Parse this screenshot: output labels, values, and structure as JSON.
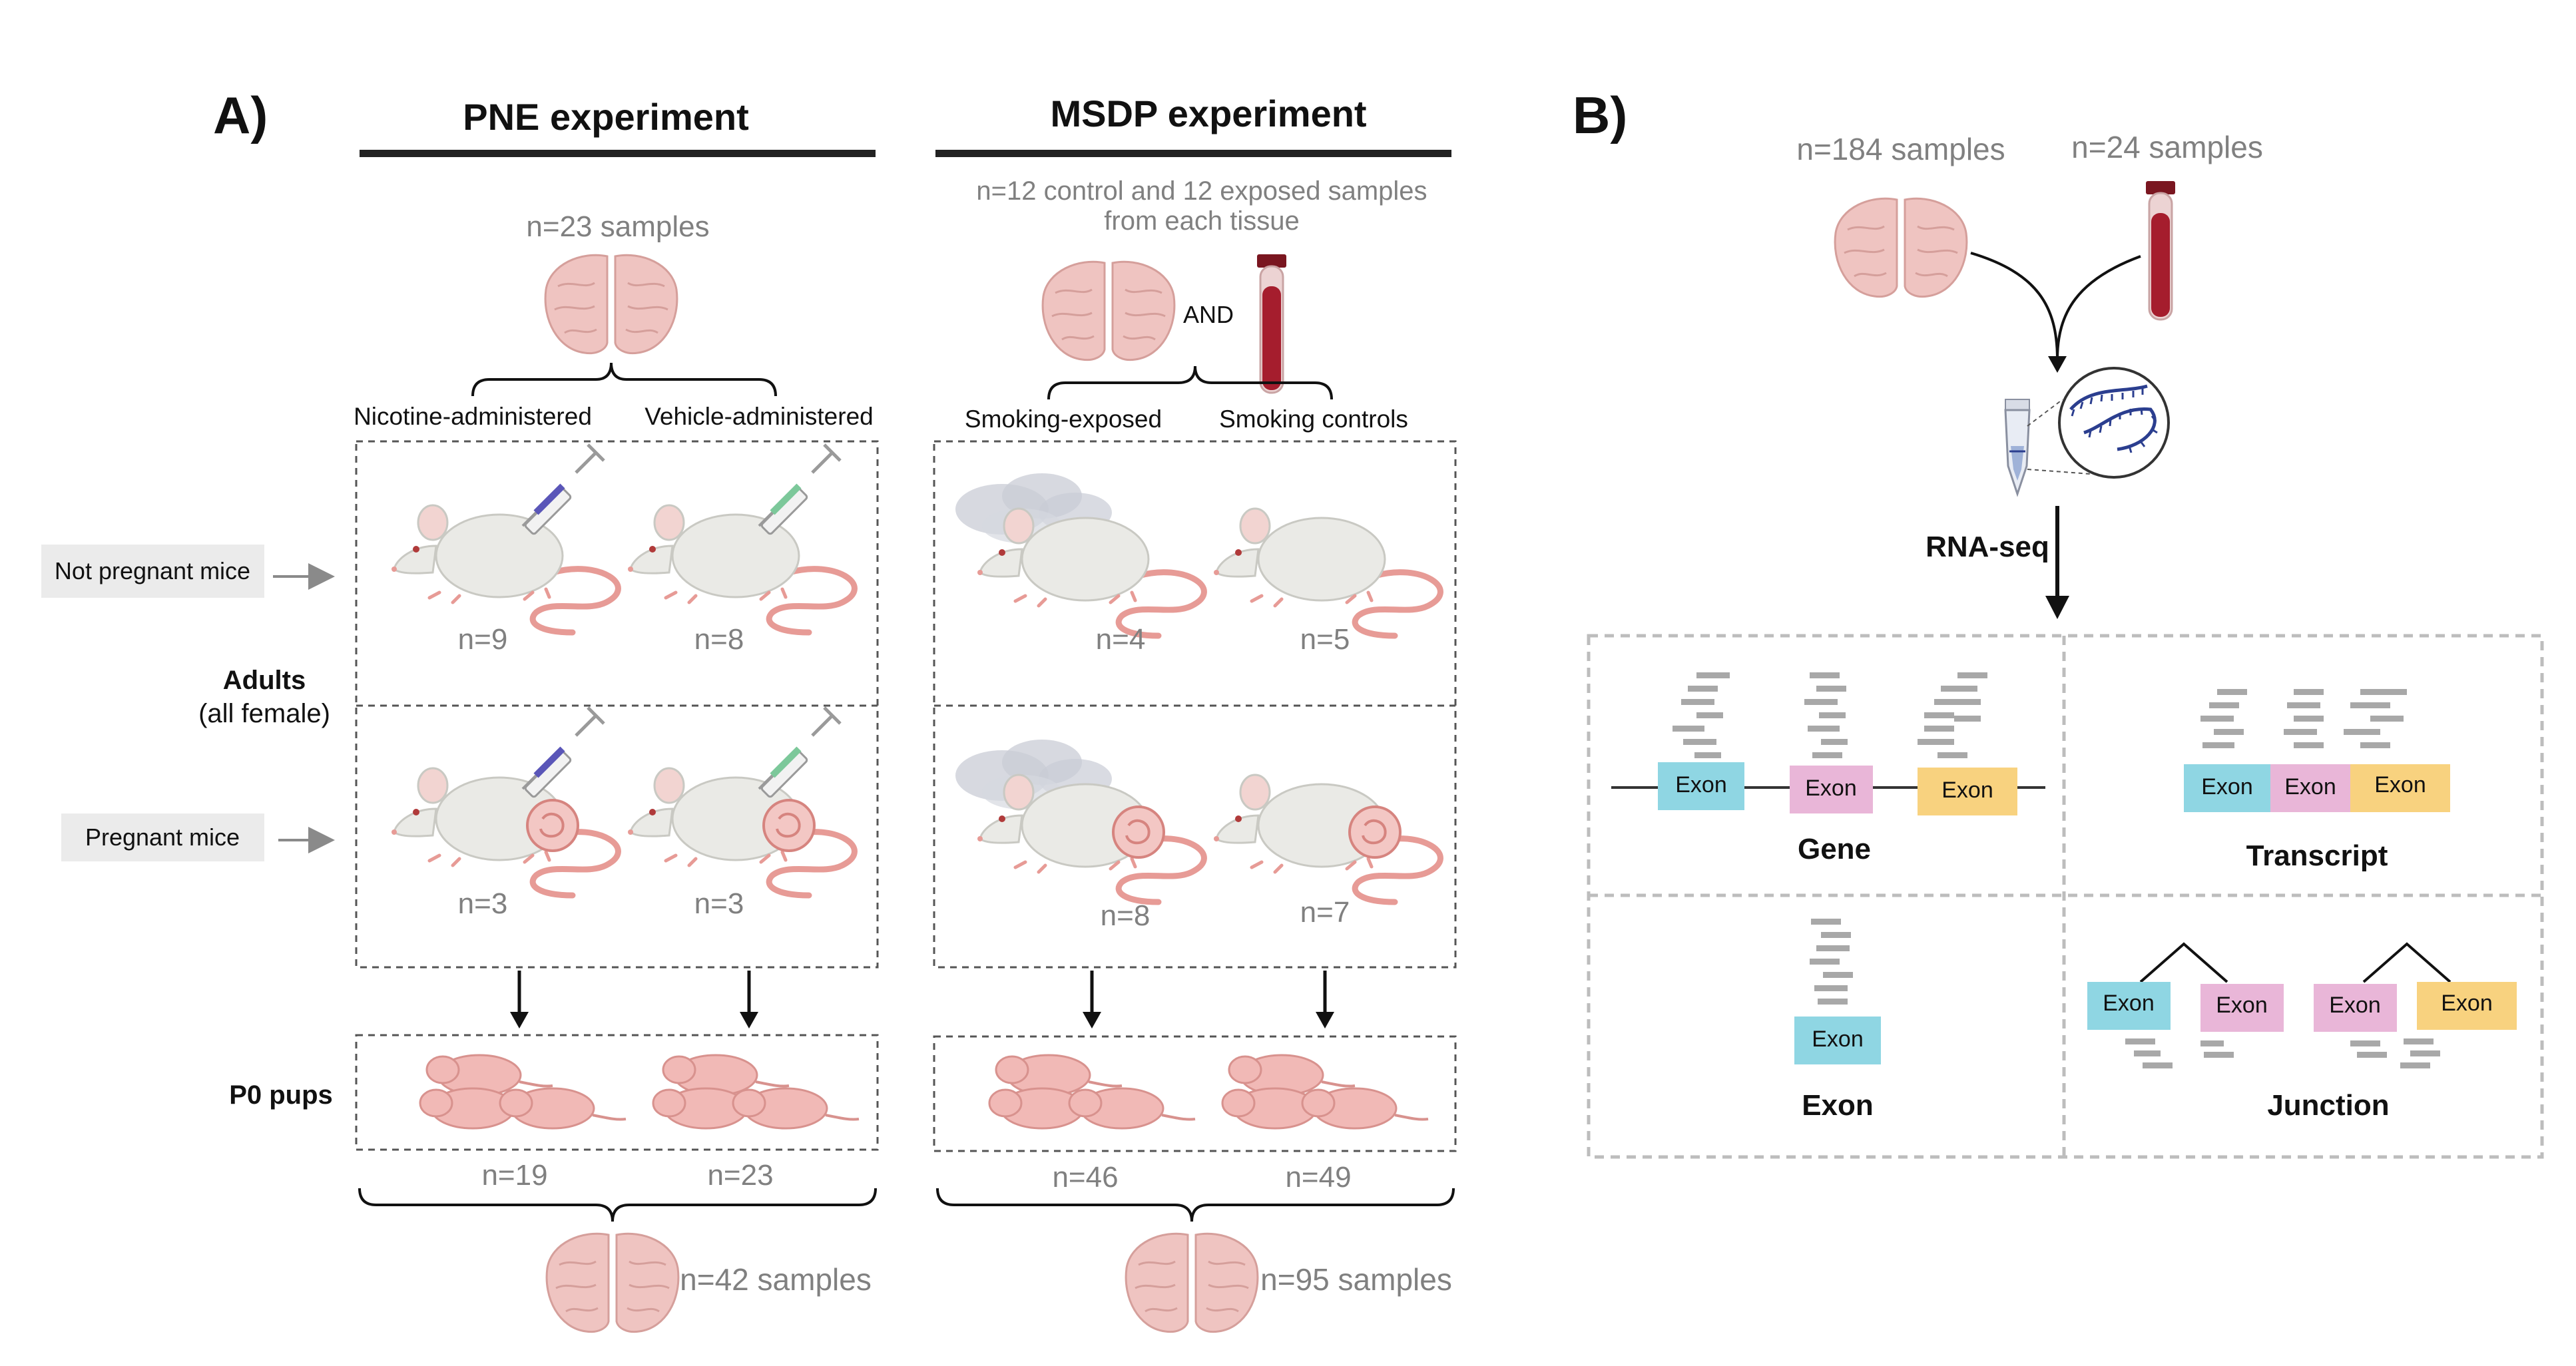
{
  "panel_a": {
    "label": "A)",
    "pne": {
      "title": "PNE experiment",
      "samples": "n=23 samples",
      "group_left": "Nicotine-administered",
      "group_right": "Vehicle-administered",
      "adult_np_left": "n=9",
      "adult_np_right": "n=8",
      "adult_p_left": "n=3",
      "adult_p_right": "n=3",
      "pups_left": "n=19",
      "pups_right": "n=23",
      "total": "n=42 samples"
    },
    "msdp": {
      "title": "MSDP experiment",
      "samples_line1": "n=12 control and 12 exposed samples",
      "samples_line2": "from each tissue",
      "and_label": "AND",
      "group_left": "Smoking-exposed",
      "group_right": "Smoking controls",
      "adult_np_left": "n=4",
      "adult_np_right": "n=5",
      "adult_p_left": "n=8",
      "adult_p_right": "n=7",
      "pups_left": "n=46",
      "pups_right": "n=49",
      "total": "n=95 samples"
    },
    "rows": {
      "not_pregnant": "Not pregnant mice",
      "pregnant": "Pregnant mice",
      "adults_line1": "Adults",
      "adults_line2": "(all female)",
      "pups": "P0 pups"
    }
  },
  "panel_b": {
    "label": "B)",
    "brain_samples": "n=184 samples",
    "blood_samples": "n=24 samples",
    "method": "RNA-seq",
    "exon_label": "Exon",
    "levels": {
      "gene": "Gene",
      "transcript": "Transcript",
      "exon": "Exon",
      "junction": "Junction"
    }
  },
  "colors": {
    "exon_blue": "#8fd6e3",
    "exon_pink": "#e9b6d8",
    "exon_yellow": "#f8d27f",
    "brain": "#efc4c1",
    "blood": "#a51d2d",
    "pup": "#f1b9b6",
    "mouse_body": "#eaeae6",
    "tail": "#e79b96",
    "syringe_liquid_nicotine": "#5a56b8",
    "syringe_liquid_vehicle": "#7cc89a",
    "rna": "#2b3e8f",
    "read_grey": "#a8a8a8",
    "text_grey": "#808080"
  }
}
